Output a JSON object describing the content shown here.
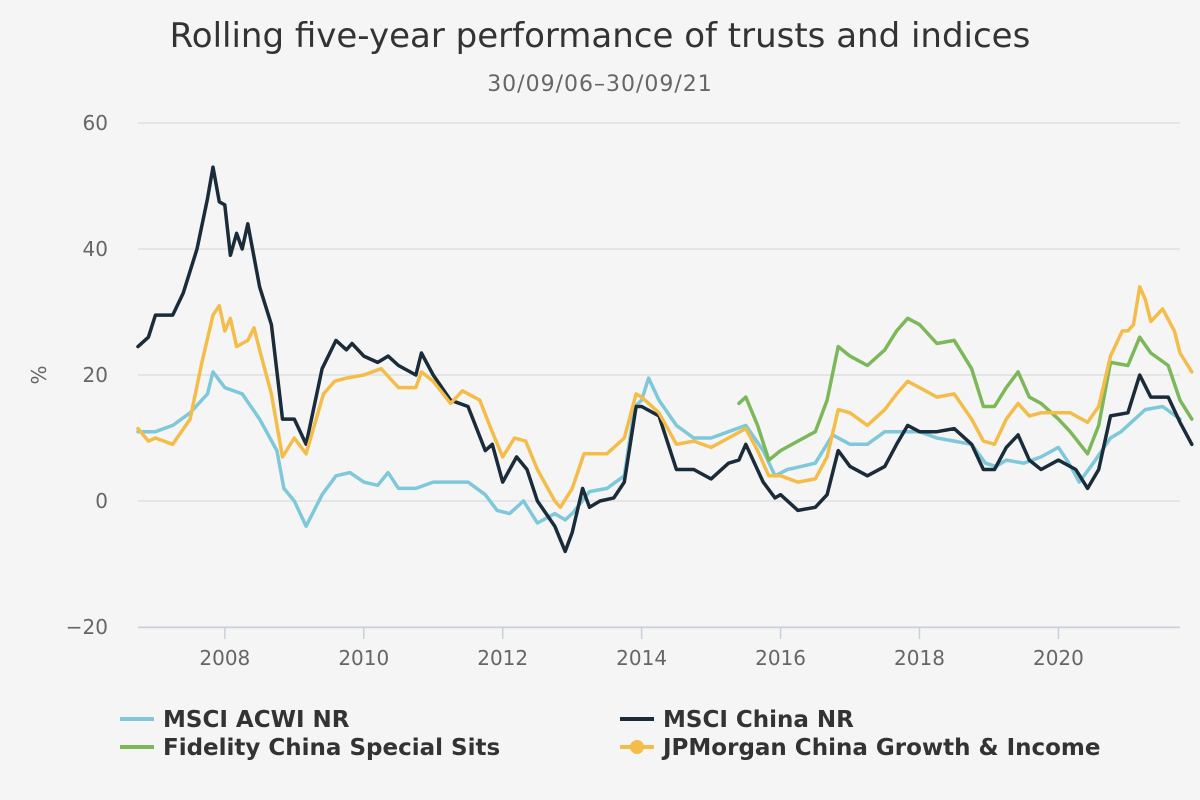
{
  "chart_data": {
    "type": "line",
    "title": "Rolling five-year performance of trusts and indices",
    "subtitle": "30/09/06–30/09/21",
    "xlabel": "",
    "ylabel": "%",
    "xlim": [
      2006.75,
      2021.75
    ],
    "ylim": [
      -20,
      60
    ],
    "x_ticks": [
      2008,
      2010,
      2012,
      2014,
      2016,
      2018,
      2020
    ],
    "x_tick_labels": [
      "2008",
      "2010",
      "2012",
      "2014",
      "2016",
      "2018",
      "2020"
    ],
    "y_ticks": [
      -20,
      0,
      20,
      40,
      60
    ],
    "y_tick_labels": [
      "−20",
      "0",
      "20",
      "40",
      "60"
    ],
    "grid": true,
    "legend_position": "bottom",
    "series": [
      {
        "name": "MSCI ACWI NR",
        "color": "#7ec8d9",
        "marker": false,
        "points": [
          [
            2006.75,
            11
          ],
          [
            2007.0,
            11
          ],
          [
            2007.25,
            12
          ],
          [
            2007.5,
            14
          ],
          [
            2007.75,
            17
          ],
          [
            2007.83,
            20.5
          ],
          [
            2008.0,
            18
          ],
          [
            2008.25,
            17
          ],
          [
            2008.5,
            13
          ],
          [
            2008.75,
            8
          ],
          [
            2008.85,
            2
          ],
          [
            2009.0,
            0
          ],
          [
            2009.17,
            -4
          ],
          [
            2009.4,
            1
          ],
          [
            2009.6,
            4
          ],
          [
            2009.8,
            4.5
          ],
          [
            2010.0,
            3
          ],
          [
            2010.2,
            2.5
          ],
          [
            2010.35,
            4.5
          ],
          [
            2010.5,
            2
          ],
          [
            2010.75,
            2
          ],
          [
            2011.0,
            3
          ],
          [
            2011.25,
            3
          ],
          [
            2011.5,
            3
          ],
          [
            2011.75,
            1
          ],
          [
            2011.92,
            -1.5
          ],
          [
            2012.1,
            -2
          ],
          [
            2012.3,
            0
          ],
          [
            2012.5,
            -3.5
          ],
          [
            2012.75,
            -2
          ],
          [
            2012.9,
            -3
          ],
          [
            2013.0,
            -2
          ],
          [
            2013.25,
            1.5
          ],
          [
            2013.5,
            2
          ],
          [
            2013.75,
            4
          ],
          [
            2013.9,
            15
          ],
          [
            2014.0,
            16
          ],
          [
            2014.1,
            19.5
          ],
          [
            2014.25,
            16
          ],
          [
            2014.5,
            12
          ],
          [
            2014.75,
            10
          ],
          [
            2015.0,
            10
          ],
          [
            2015.25,
            11
          ],
          [
            2015.5,
            12
          ],
          [
            2015.75,
            8
          ],
          [
            2015.92,
            4
          ],
          [
            2016.1,
            5
          ],
          [
            2016.3,
            5.5
          ],
          [
            2016.5,
            6
          ],
          [
            2016.75,
            10.5
          ],
          [
            2017.0,
            9
          ],
          [
            2017.25,
            9
          ],
          [
            2017.5,
            11
          ],
          [
            2017.75,
            11
          ],
          [
            2018.0,
            11
          ],
          [
            2018.25,
            10
          ],
          [
            2018.5,
            9.5
          ],
          [
            2018.75,
            9
          ],
          [
            2018.95,
            6
          ],
          [
            2019.1,
            5.5
          ],
          [
            2019.25,
            6.5
          ],
          [
            2019.5,
            6
          ],
          [
            2019.75,
            7
          ],
          [
            2020.0,
            8.5
          ],
          [
            2020.15,
            6
          ],
          [
            2020.3,
            3
          ],
          [
            2020.5,
            6
          ],
          [
            2020.75,
            10
          ],
          [
            2020.9,
            11
          ],
          [
            2021.0,
            12
          ],
          [
            2021.25,
            14.5
          ],
          [
            2021.5,
            15
          ],
          [
            2021.75,
            13
          ]
        ]
      },
      {
        "name": "MSCI China NR",
        "color": "#1a2b3a",
        "marker": false,
        "points": [
          [
            2006.75,
            24.5
          ],
          [
            2006.9,
            26
          ],
          [
            2007.0,
            29.5
          ],
          [
            2007.25,
            29.5
          ],
          [
            2007.4,
            33
          ],
          [
            2007.6,
            40
          ],
          [
            2007.75,
            48
          ],
          [
            2007.83,
            53
          ],
          [
            2007.92,
            47.5
          ],
          [
            2008.0,
            47
          ],
          [
            2008.08,
            39
          ],
          [
            2008.17,
            42.5
          ],
          [
            2008.25,
            40
          ],
          [
            2008.33,
            44
          ],
          [
            2008.5,
            34
          ],
          [
            2008.67,
            28
          ],
          [
            2008.83,
            13
          ],
          [
            2009.0,
            13
          ],
          [
            2009.17,
            9
          ],
          [
            2009.4,
            21
          ],
          [
            2009.6,
            25.5
          ],
          [
            2009.75,
            24
          ],
          [
            2009.83,
            25
          ],
          [
            2010.0,
            23
          ],
          [
            2010.2,
            22
          ],
          [
            2010.35,
            23
          ],
          [
            2010.5,
            21.5
          ],
          [
            2010.75,
            20
          ],
          [
            2010.83,
            23.5
          ],
          [
            2011.0,
            20
          ],
          [
            2011.25,
            16
          ],
          [
            2011.5,
            15
          ],
          [
            2011.75,
            8
          ],
          [
            2011.85,
            9
          ],
          [
            2012.0,
            3
          ],
          [
            2012.2,
            7
          ],
          [
            2012.35,
            5
          ],
          [
            2012.5,
            0
          ],
          [
            2012.75,
            -4
          ],
          [
            2012.9,
            -8
          ],
          [
            2013.0,
            -5
          ],
          [
            2013.15,
            2
          ],
          [
            2013.25,
            -1
          ],
          [
            2013.4,
            0
          ],
          [
            2013.6,
            0.5
          ],
          [
            2013.75,
            3
          ],
          [
            2013.92,
            15
          ],
          [
            2014.0,
            15
          ],
          [
            2014.25,
            13.5
          ],
          [
            2014.5,
            5
          ],
          [
            2014.75,
            5
          ],
          [
            2015.0,
            3.5
          ],
          [
            2015.25,
            6
          ],
          [
            2015.4,
            6.5
          ],
          [
            2015.5,
            9
          ],
          [
            2015.75,
            3
          ],
          [
            2015.92,
            0.5
          ],
          [
            2016.0,
            1
          ],
          [
            2016.25,
            -1.5
          ],
          [
            2016.5,
            -1
          ],
          [
            2016.67,
            1
          ],
          [
            2016.83,
            8
          ],
          [
            2017.0,
            5.5
          ],
          [
            2017.25,
            4
          ],
          [
            2017.5,
            5.5
          ],
          [
            2017.67,
            9
          ],
          [
            2017.83,
            12
          ],
          [
            2018.0,
            11
          ],
          [
            2018.25,
            11
          ],
          [
            2018.5,
            11.5
          ],
          [
            2018.75,
            9
          ],
          [
            2018.92,
            5
          ],
          [
            2019.08,
            5
          ],
          [
            2019.25,
            8.5
          ],
          [
            2019.42,
            10.5
          ],
          [
            2019.58,
            6.5
          ],
          [
            2019.75,
            5
          ],
          [
            2020.0,
            6.5
          ],
          [
            2020.25,
            5
          ],
          [
            2020.42,
            2
          ],
          [
            2020.58,
            5
          ],
          [
            2020.75,
            13.5
          ],
          [
            2021.0,
            14
          ],
          [
            2021.17,
            20
          ],
          [
            2021.33,
            16.5
          ],
          [
            2021.58,
            16.5
          ],
          [
            2021.75,
            12.5
          ],
          [
            2021.92,
            9
          ]
        ]
      },
      {
        "name": "Fidelity China Special Sits",
        "color": "#7cb85a",
        "marker": false,
        "points": [
          [
            2015.4,
            15.5
          ],
          [
            2015.5,
            16.5
          ],
          [
            2015.67,
            12
          ],
          [
            2015.83,
            6.5
          ],
          [
            2016.0,
            8
          ],
          [
            2016.25,
            9.5
          ],
          [
            2016.5,
            11
          ],
          [
            2016.67,
            16
          ],
          [
            2016.83,
            24.5
          ],
          [
            2017.0,
            23
          ],
          [
            2017.25,
            21.5
          ],
          [
            2017.5,
            24
          ],
          [
            2017.67,
            27
          ],
          [
            2017.83,
            29
          ],
          [
            2018.0,
            28
          ],
          [
            2018.25,
            25
          ],
          [
            2018.5,
            25.5
          ],
          [
            2018.75,
            21
          ],
          [
            2018.92,
            15
          ],
          [
            2019.08,
            15
          ],
          [
            2019.25,
            18
          ],
          [
            2019.42,
            20.5
          ],
          [
            2019.58,
            16.5
          ],
          [
            2019.75,
            15.5
          ],
          [
            2020.0,
            13
          ],
          [
            2020.17,
            11
          ],
          [
            2020.42,
            7.5
          ],
          [
            2020.58,
            12
          ],
          [
            2020.75,
            22
          ],
          [
            2021.0,
            21.5
          ],
          [
            2021.17,
            26
          ],
          [
            2021.33,
            23.5
          ],
          [
            2021.58,
            21.5
          ],
          [
            2021.75,
            16
          ],
          [
            2021.92,
            13
          ]
        ]
      },
      {
        "name": "JPMorgan China Growth & Income",
        "color": "#f4bd4a",
        "marker": true,
        "points": [
          [
            2006.75,
            11.5
          ],
          [
            2006.9,
            9.5
          ],
          [
            2007.0,
            10
          ],
          [
            2007.25,
            9
          ],
          [
            2007.5,
            13
          ],
          [
            2007.67,
            22
          ],
          [
            2007.83,
            29.5
          ],
          [
            2007.92,
            31
          ],
          [
            2008.0,
            27
          ],
          [
            2008.08,
            29
          ],
          [
            2008.17,
            24.5
          ],
          [
            2008.33,
            25.5
          ],
          [
            2008.42,
            27.5
          ],
          [
            2008.5,
            24
          ],
          [
            2008.67,
            17
          ],
          [
            2008.83,
            7
          ],
          [
            2009.0,
            10
          ],
          [
            2009.17,
            7.5
          ],
          [
            2009.42,
            17
          ],
          [
            2009.58,
            19
          ],
          [
            2009.75,
            19.5
          ],
          [
            2010.0,
            20
          ],
          [
            2010.25,
            21
          ],
          [
            2010.5,
            18
          ],
          [
            2010.75,
            18
          ],
          [
            2010.83,
            20.5
          ],
          [
            2011.0,
            19
          ],
          [
            2011.25,
            15.5
          ],
          [
            2011.42,
            17.5
          ],
          [
            2011.67,
            16
          ],
          [
            2011.83,
            11.5
          ],
          [
            2012.0,
            7
          ],
          [
            2012.17,
            10
          ],
          [
            2012.33,
            9.5
          ],
          [
            2012.5,
            5
          ],
          [
            2012.75,
            0
          ],
          [
            2012.83,
            -1
          ],
          [
            2013.0,
            2
          ],
          [
            2013.17,
            7.5
          ],
          [
            2013.33,
            7.5
          ],
          [
            2013.5,
            7.5
          ],
          [
            2013.75,
            10
          ],
          [
            2013.92,
            17
          ],
          [
            2014.0,
            16.5
          ],
          [
            2014.25,
            14
          ],
          [
            2014.5,
            9
          ],
          [
            2014.75,
            9.5
          ],
          [
            2015.0,
            8.5
          ],
          [
            2015.25,
            10
          ],
          [
            2015.5,
            11.5
          ],
          [
            2015.67,
            8
          ],
          [
            2015.83,
            4
          ],
          [
            2016.0,
            4
          ],
          [
            2016.25,
            3
          ],
          [
            2016.5,
            3.5
          ],
          [
            2016.67,
            7
          ],
          [
            2016.83,
            14.5
          ],
          [
            2017.0,
            14
          ],
          [
            2017.25,
            12
          ],
          [
            2017.5,
            14.5
          ],
          [
            2017.67,
            17
          ],
          [
            2017.83,
            19
          ],
          [
            2018.0,
            18
          ],
          [
            2018.25,
            16.5
          ],
          [
            2018.5,
            17
          ],
          [
            2018.75,
            13
          ],
          [
            2018.92,
            9.5
          ],
          [
            2019.08,
            9
          ],
          [
            2019.25,
            13
          ],
          [
            2019.42,
            15.5
          ],
          [
            2019.58,
            13.5
          ],
          [
            2019.75,
            14
          ],
          [
            2020.0,
            14
          ],
          [
            2020.17,
            14
          ],
          [
            2020.42,
            12.5
          ],
          [
            2020.58,
            15
          ],
          [
            2020.75,
            23
          ],
          [
            2020.92,
            27
          ],
          [
            2021.0,
            27
          ],
          [
            2021.08,
            28
          ],
          [
            2021.17,
            34
          ],
          [
            2021.25,
            32
          ],
          [
            2021.33,
            28.5
          ],
          [
            2021.5,
            30.5
          ],
          [
            2021.67,
            27
          ],
          [
            2021.75,
            23.5
          ],
          [
            2021.92,
            20.5
          ]
        ]
      }
    ]
  }
}
